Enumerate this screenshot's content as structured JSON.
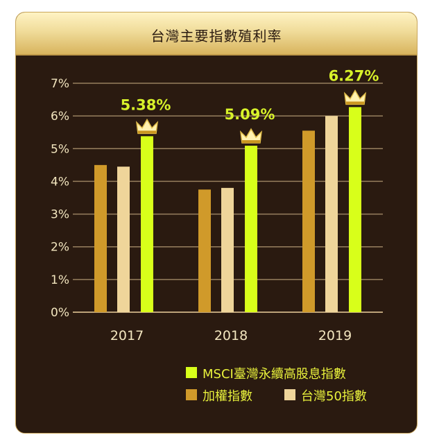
{
  "chart_data": {
    "type": "bar",
    "title": "台灣主要指數殖利率",
    "categories": [
      "2017",
      "2018",
      "2019"
    ],
    "series": [
      {
        "name": "加權指數",
        "values": [
          4.5,
          3.75,
          5.55
        ],
        "color": "#d09a2a"
      },
      {
        "name": "台灣50指數",
        "values": [
          4.45,
          3.8,
          6.0
        ],
        "color": "#efd59a"
      },
      {
        "name": "MSCI臺灣永續高股息指數",
        "values": [
          5.38,
          5.09,
          6.27
        ],
        "color": "#d8ff1a"
      }
    ],
    "highlight_labels": [
      "5.38%",
      "5.09%",
      "6.27%"
    ],
    "highlight_icon": "crown-icon",
    "y_ticks": [
      "0%",
      "1%",
      "2%",
      "3%",
      "4%",
      "5%",
      "6%",
      "7%"
    ],
    "ylim": [
      0,
      7
    ],
    "grid": true,
    "legend_position": "bottom-right"
  }
}
